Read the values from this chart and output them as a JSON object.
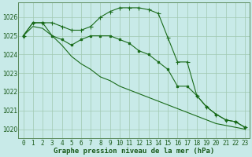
{
  "title": "Graphe pression niveau de la mer (hPa)",
  "background_color": "#c8eae8",
  "grid_color": "#a0c8b0",
  "line_color": "#1a6b1a",
  "spine_color": "#5a8a5a",
  "x_labels": [
    "0",
    "1",
    "2",
    "3",
    "4",
    "5",
    "6",
    "7",
    "8",
    "9",
    "10",
    "11",
    "12",
    "13",
    "14",
    "15",
    "16",
    "17",
    "18",
    "19",
    "20",
    "21",
    "22",
    "23"
  ],
  "xlim": [
    -0.5,
    23.5
  ],
  "ylim": [
    1019.5,
    1026.8
  ],
  "yticks": [
    1020,
    1021,
    1022,
    1023,
    1024,
    1025,
    1026
  ],
  "series": [
    [
      1025.0,
      1025.7,
      1025.7,
      1025.7,
      1025.5,
      1025.3,
      1025.3,
      1025.5,
      1026.0,
      1026.3,
      1026.5,
      1026.5,
      1026.5,
      1026.4,
      1026.2,
      1024.9,
      1023.6,
      1023.6,
      1021.8,
      1021.2,
      1020.8,
      1020.5,
      1020.4,
      1020.1
    ],
    [
      1025.0,
      1025.7,
      1025.7,
      1025.0,
      1024.8,
      1024.5,
      1024.8,
      1025.0,
      1025.0,
      1025.0,
      1024.8,
      1024.6,
      1024.2,
      1024.0,
      1023.6,
      1023.2,
      1022.3,
      1022.3,
      1021.8,
      1021.2,
      1020.8,
      1020.5,
      1020.4,
      1020.1
    ],
    [
      1025.0,
      1025.5,
      1025.4,
      1025.0,
      1024.5,
      1023.9,
      1023.5,
      1023.2,
      1022.8,
      1022.6,
      1022.3,
      1022.1,
      1021.9,
      1021.7,
      1021.5,
      1021.3,
      1021.1,
      1020.9,
      1020.7,
      1020.5,
      1020.3,
      1020.2,
      1020.1,
      1020.0
    ]
  ],
  "tick_fontsize": 5.5,
  "label_fontsize": 6.5,
  "marker_size": 2.0,
  "linewidth": 0.8
}
